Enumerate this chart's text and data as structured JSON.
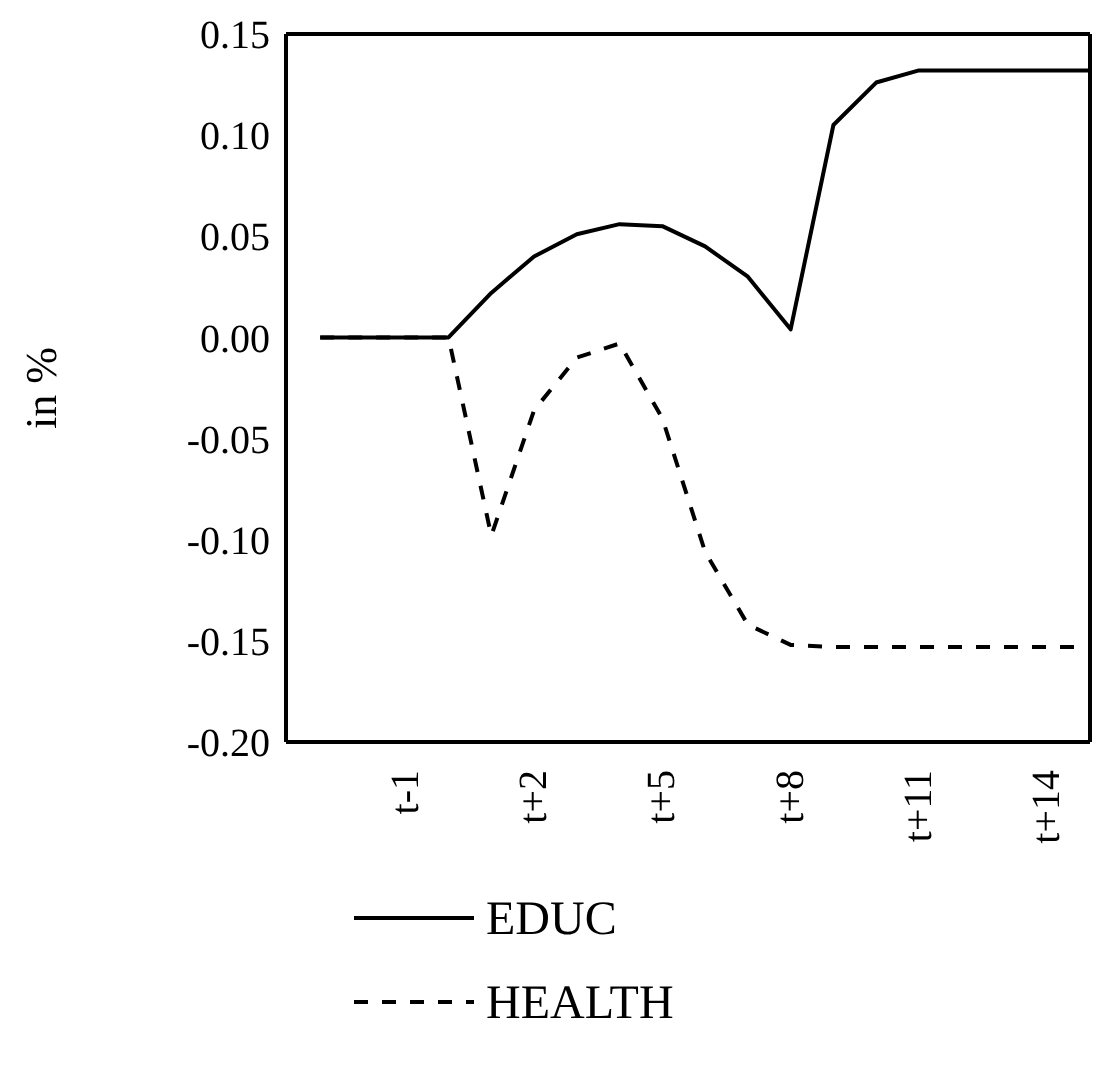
{
  "chart_data": {
    "type": "line",
    "ylabel": "in %",
    "categories": [
      null,
      null,
      "t-1",
      null,
      null,
      "t+2",
      null,
      null,
      "t+5",
      null,
      null,
      "t+8",
      null,
      null,
      "t+11",
      null,
      null,
      "t+14",
      null
    ],
    "series": [
      {
        "name": "EDUC",
        "color": "#000000",
        "line_style": "solid",
        "values": [
          0,
          0,
          0,
          0,
          0.022,
          0.04,
          0.051,
          0.056,
          0.055,
          0.045,
          0.03,
          0.004,
          0.105,
          0.126,
          0.132,
          0.132,
          0.132,
          0.132,
          0.132
        ]
      },
      {
        "name": "HEALTH",
        "color": "#000000",
        "line_style": "dashed",
        "values": [
          0,
          0,
          0,
          0,
          -0.098,
          -0.036,
          -0.01,
          -0.003,
          -0.04,
          -0.106,
          -0.142,
          -0.152,
          -0.153,
          -0.153,
          -0.153,
          -0.153,
          -0.153,
          -0.153,
          -0.153
        ]
      }
    ],
    "ylim": [
      -0.2,
      0.15
    ],
    "yticks": [
      {
        "value": -0.2,
        "label": "-0.20"
      },
      -0.15,
      {
        "value": -0.1,
        "label": "-0.10"
      },
      -0.05,
      {
        "value": 0,
        "label": "0.00"
      },
      0.05,
      {
        "value": 0.1,
        "label": "0.10"
      },
      0.15
    ],
    "grid": false,
    "legend": "bottom",
    "marker": "none"
  }
}
